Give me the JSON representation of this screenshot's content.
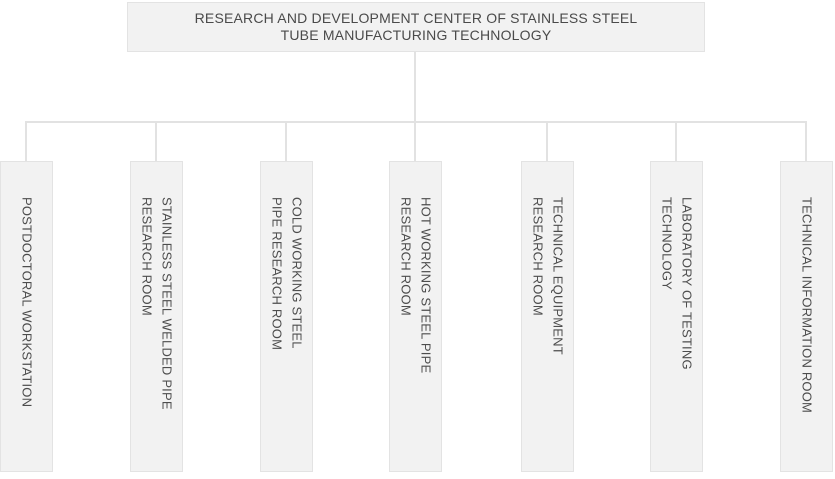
{
  "root": {
    "title": "RESEARCH AND DEVELOPMENT CENTER OF STAINLESS STEEL\nTUBE MANUFACTURING TECHNOLOGY"
  },
  "children": [
    {
      "text": "POSTDOCTORAL WORKSTATION"
    },
    {
      "text": "STAINLESS STEEL WELDED PIPE\nRESEARCH ROOM"
    },
    {
      "text": "COLD WORKING STEEL\nPIPE RESEARCH ROOM"
    },
    {
      "text": "HOT WORKING STEEL PIPE\nRESEARCH ROOM"
    },
    {
      "text": "TECHNICAL EQUIPMENT\nRESEARCH ROOM"
    },
    {
      "text": "LABORATORY OF TESTING\nTECHNOLOGY"
    },
    {
      "text": "TECHNICAL INFORMATION ROOM"
    }
  ],
  "colors": {
    "background": "#ffffff",
    "box_fill": "#f2f2f2",
    "box_border": "#e3e3e3",
    "connector_line": "#e2e2e2",
    "text": "#4d4d4d"
  }
}
